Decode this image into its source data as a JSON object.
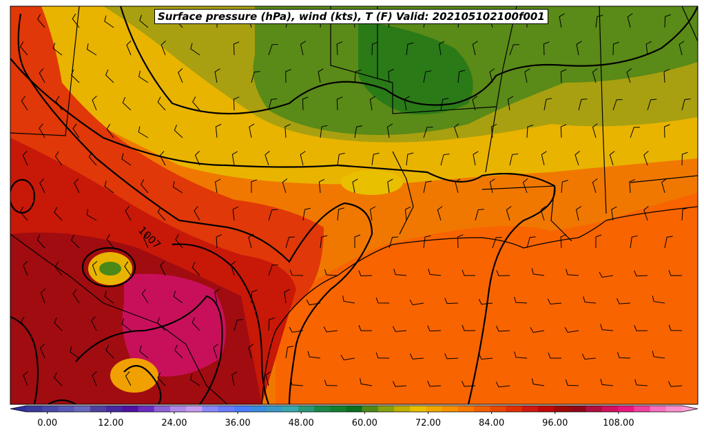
{
  "title": "Surface pressure (hPa), wind (kts), T (F) Valid: 202105102100f001",
  "isobar_label": "1007",
  "colorbar": {
    "min": -4,
    "max": 120,
    "ticks": [
      "0.00",
      "12.00",
      "24.00",
      "36.00",
      "48.00",
      "60.00",
      "72.00",
      "84.00",
      "96.00",
      "108.00"
    ],
    "colors": [
      "#3a3a9a",
      "#4848a8",
      "#5858b4",
      "#6868bc",
      "#5040a0",
      "#4828a0",
      "#5010a0",
      "#6a2cc0",
      "#9060d8",
      "#b088e8",
      "#c89cf0",
      "#8888ff",
      "#6a7cff",
      "#4a7cff",
      "#3a8ce0",
      "#3a98c8",
      "#3aa8b0",
      "#2a9878",
      "#1a8848",
      "#128030",
      "#0a7020",
      "#508818",
      "#88a010",
      "#c0b000",
      "#e8c000",
      "#f0a800",
      "#f89000",
      "#f87800",
      "#f06000",
      "#e84800",
      "#e03000",
      "#d01810",
      "#c00808",
      "#a00808",
      "#900818",
      "#b01040",
      "#d01060",
      "#e81880",
      "#f040a0",
      "#f870c0",
      "#ff90d0"
    ]
  },
  "colors": {
    "land_hot": "#e03000",
    "land_warm": "#f07000",
    "gulf": "#f86000",
    "cool_green": "#4a8818",
    "yellow": "#e8c000",
    "hot_magenta": "#c8105a"
  }
}
